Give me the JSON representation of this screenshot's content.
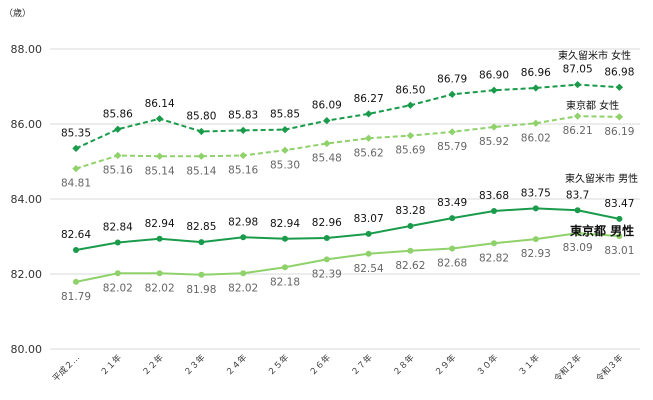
{
  "chart_data": {
    "type": "line",
    "unit_label": "（歳）",
    "ylim": [
      80,
      88
    ],
    "yticks": [
      "80.00",
      "82.00",
      "84.00",
      "86.00",
      "88.00"
    ],
    "grid": true,
    "categories": [
      "平成２…",
      "２１年",
      "２２年",
      "２３年",
      "２４年",
      "２５年",
      "２６年",
      "２７年",
      "２８年",
      "２９年",
      "３０年",
      "３１年",
      "令和２年",
      "令和３年"
    ],
    "series": [
      {
        "name": "東久留米市 女性",
        "color": "#1a9b4b",
        "dash": true,
        "label_tone": "dark",
        "label_pos": "above",
        "values": [
          85.35,
          85.86,
          86.14,
          85.8,
          85.83,
          85.85,
          86.09,
          86.27,
          86.5,
          86.79,
          86.9,
          86.96,
          87.05,
          86.98
        ],
        "labels": [
          "85.35",
          "85.86",
          "86.14",
          "85.80",
          "85.83",
          "85.85",
          "86.09",
          "86.27",
          "86.50",
          "86.79",
          "86.90",
          "86.96",
          "87.05",
          "86.98"
        ]
      },
      {
        "name": "東京都 女性",
        "color": "#8fd16a",
        "dash": true,
        "label_tone": "light",
        "label_pos": "below",
        "values": [
          84.81,
          85.16,
          85.14,
          85.14,
          85.16,
          85.3,
          85.48,
          85.62,
          85.69,
          85.79,
          85.92,
          86.02,
          86.21,
          86.19
        ],
        "labels": [
          "84.81",
          "85.16",
          "85.14",
          "85.14",
          "85.16",
          "85.30",
          "85.48",
          "85.62",
          "85.69",
          "85.79",
          "85.92",
          "86.02",
          "86.21",
          "86.19"
        ]
      },
      {
        "name": "東久留米市 男性",
        "color": "#1a9b4b",
        "dash": false,
        "label_tone": "dark",
        "label_pos": "above",
        "values": [
          82.64,
          82.84,
          82.94,
          82.85,
          82.98,
          82.94,
          82.96,
          83.07,
          83.28,
          83.49,
          83.68,
          83.75,
          83.7,
          83.47
        ],
        "labels": [
          "82.64",
          "82.84",
          "82.94",
          "82.85",
          "82.98",
          "82.94",
          "82.96",
          "83.07",
          "83.28",
          "83.49",
          "83.68",
          "83.75",
          "83.7",
          "83.47"
        ]
      },
      {
        "name": "東京都 男性",
        "color": "#8fd16a",
        "dash": false,
        "label_tone": "light",
        "label_pos": "below",
        "values": [
          81.79,
          82.02,
          82.02,
          81.98,
          82.02,
          82.18,
          82.39,
          82.54,
          82.62,
          82.68,
          82.82,
          82.93,
          83.09,
          83.01
        ],
        "labels": [
          "81.79",
          "82.02",
          "82.02",
          "81.98",
          "82.02",
          "82.18",
          "82.39",
          "82.54",
          "82.62",
          "82.68",
          "82.82",
          "82.93",
          "83.09",
          "83.01"
        ]
      }
    ],
    "legend": {
      "city_female": "東久留米市 女性",
      "tokyo_female": "東京都 女性",
      "city_male": "東久留米市 男性",
      "tokyo_male": "東京都 男性"
    }
  }
}
